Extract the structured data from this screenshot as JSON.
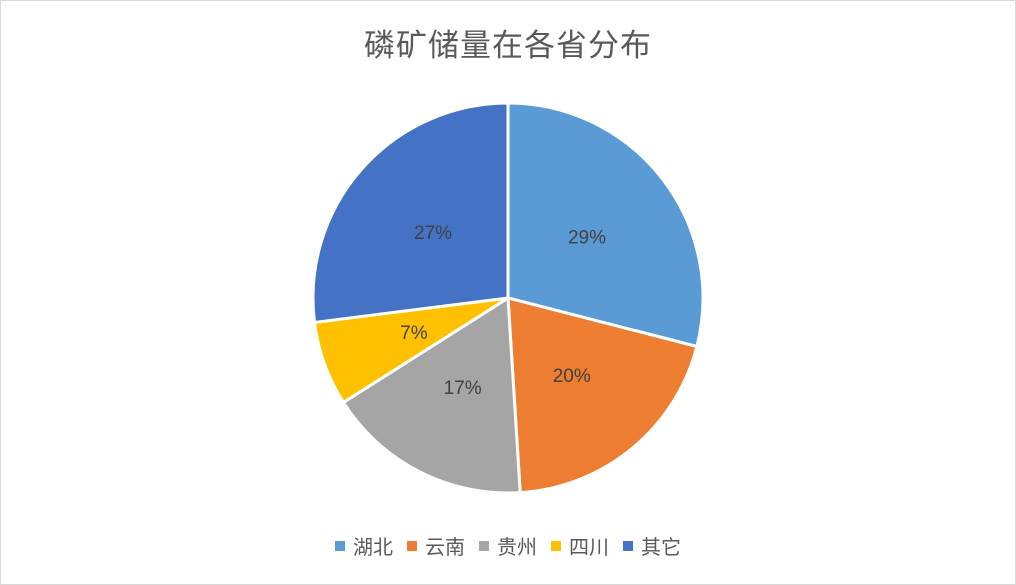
{
  "chart_data": {
    "type": "pie",
    "title": "磷矿储量在各省分布",
    "categories": [
      "湖北",
      "云南",
      "贵州",
      "四川",
      "其它"
    ],
    "values": [
      29,
      20,
      17,
      7,
      27
    ],
    "labels": [
      "29%",
      "20%",
      "17%",
      "7%",
      "27%"
    ],
    "colors": [
      "#5B9BD5",
      "#ED7D31",
      "#A5A5A5",
      "#FFC000",
      "#4472C4"
    ],
    "legend": "bottom",
    "start": "top, clockwise"
  }
}
